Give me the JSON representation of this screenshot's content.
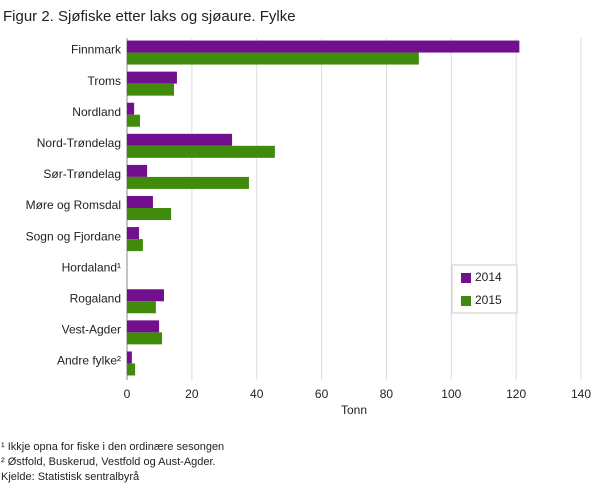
{
  "chart_data": {
    "type": "hbar",
    "title": "Figur 2. Sjøfiske etter laks og sjøaure. Fylke",
    "categories": [
      "Finnmark",
      "Troms",
      "Nordland",
      "Nord-Trøndelag",
      "Sør-Trøndelag",
      "Møre og Romsdal",
      "Sogn og Fjordane",
      "Hordaland¹",
      "Rogaland",
      "Vest-Agder",
      "Andre fylke²"
    ],
    "series": [
      {
        "name": "2014",
        "color": "#720f8e",
        "values": [
          121,
          15.4,
          2.2,
          32.4,
          6.2,
          8,
          3.7,
          null,
          11.4,
          9.9,
          1.5
        ]
      },
      {
        "name": "2015",
        "color": "#408a0c",
        "values": [
          90,
          14.5,
          4,
          45.6,
          37.6,
          13.6,
          4.9,
          null,
          8.9,
          10.8,
          2.5
        ]
      }
    ],
    "xlabel": "Tonn",
    "xlim": [
      0,
      140
    ],
    "xticks": [
      0,
      20,
      40,
      60,
      80,
      100,
      120,
      140
    ],
    "grid": true,
    "legend": "center right",
    "footnotes": [
      "¹ Ikkje opna for fiske i den ordinære sesongen",
      "² Østfold, Buskerud, Vestfold og Aust-Agder.",
      "Kjelde: Statistisk sentralbyrå"
    ]
  }
}
